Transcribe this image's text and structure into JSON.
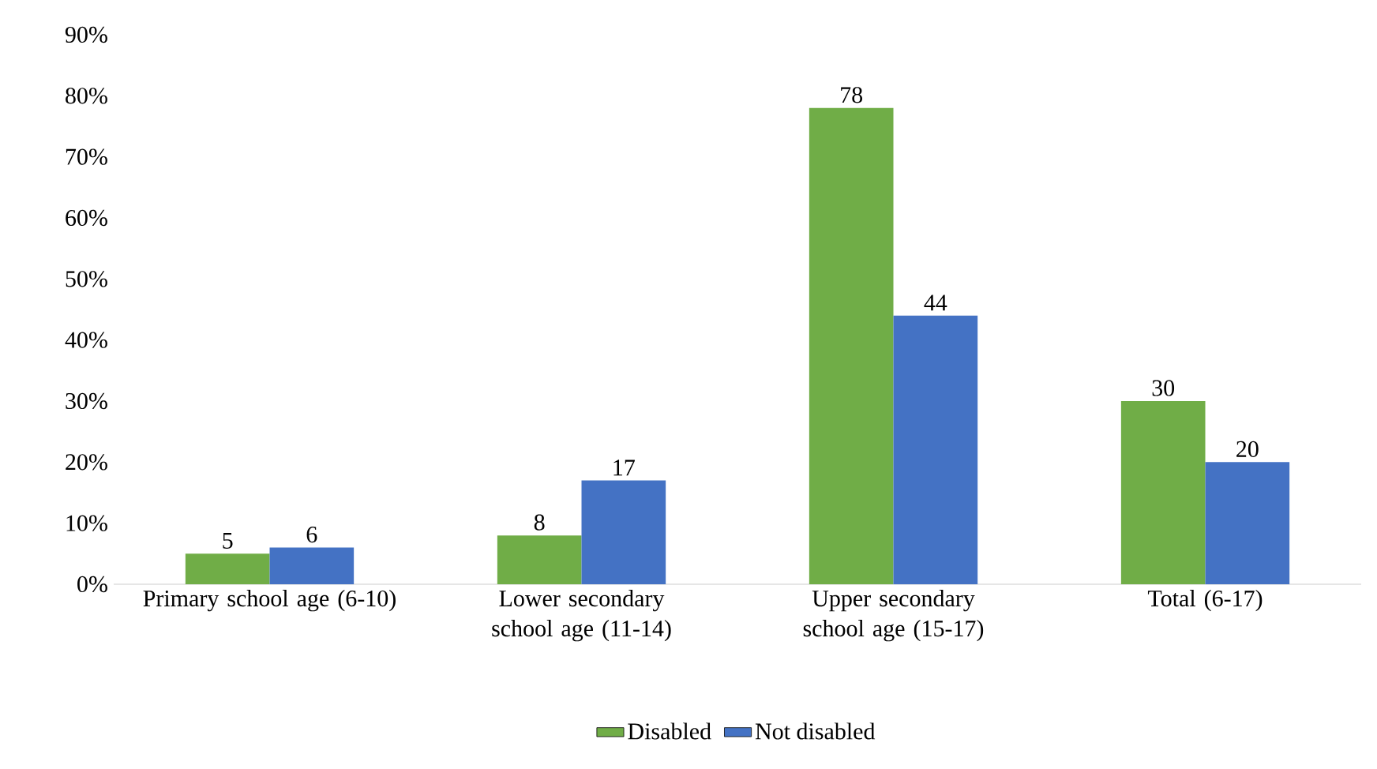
{
  "chart_data": {
    "type": "bar",
    "categories": [
      "Primary school age (6-10)",
      "Lower secondary school age (11-14)",
      "Upper secondary school age (15-17)",
      "Total (6-17)"
    ],
    "series": [
      {
        "name": "Disabled",
        "color": "#70ad47",
        "values": [
          5,
          8,
          78,
          30
        ]
      },
      {
        "name": "Not disabled",
        "color": "#4472c4",
        "values": [
          6,
          17,
          44,
          20
        ]
      }
    ],
    "ylim": [
      0,
      90
    ],
    "yticks": [
      {
        "value": 0,
        "label": "0%"
      },
      {
        "value": 10,
        "label": "10%"
      },
      {
        "value": 20,
        "label": "20%"
      },
      {
        "value": 30,
        "label": "30%"
      },
      {
        "value": 40,
        "label": "40%"
      },
      {
        "value": 50,
        "label": "50%"
      },
      {
        "value": 60,
        "label": "60%"
      },
      {
        "value": 70,
        "label": "70%"
      },
      {
        "value": 80,
        "label": "80%"
      },
      {
        "value": 90,
        "label": "90%"
      }
    ],
    "data_labels": true,
    "legend": "bottom"
  }
}
